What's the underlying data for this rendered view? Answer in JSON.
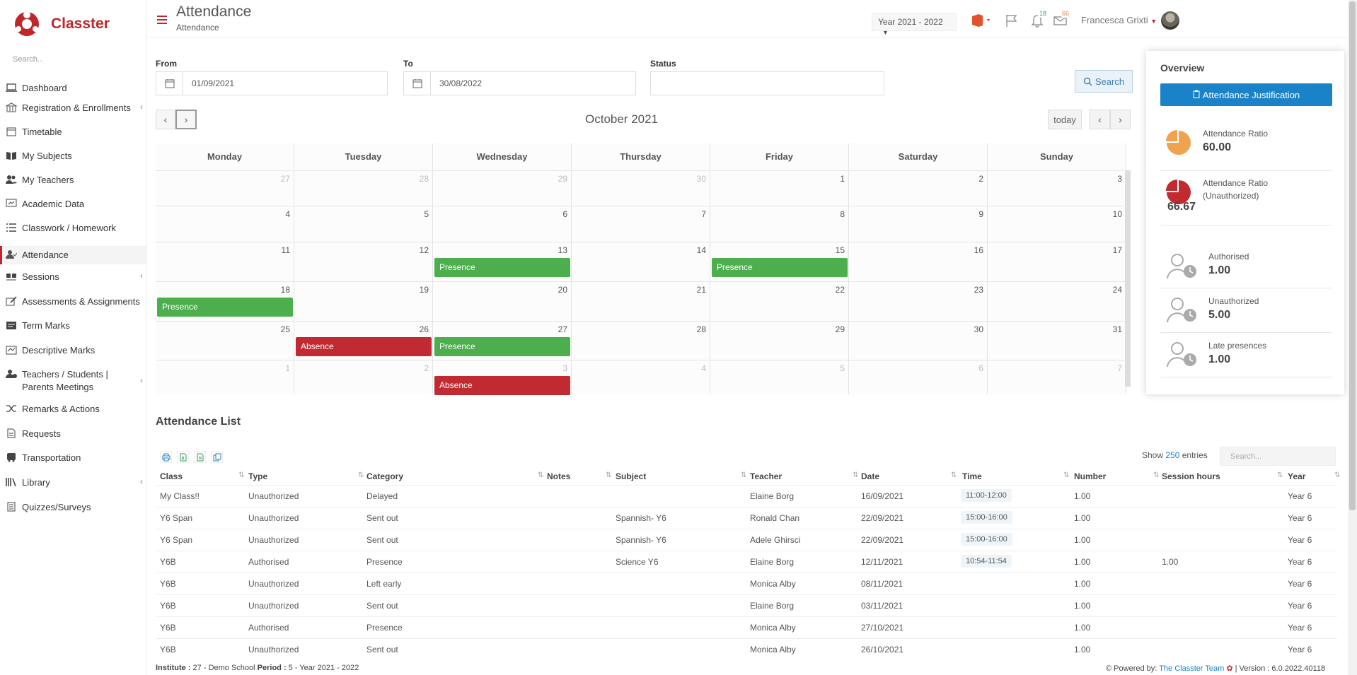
{
  "app": {
    "name": "Classter",
    "search_placeholder": "Search..."
  },
  "sidebar": {
    "items": [
      {
        "label": "Dashboard",
        "icon": "laptop-icon"
      },
      {
        "label": "Registration & Enrollments",
        "icon": "bank-icon",
        "chevron": "‹"
      },
      {
        "label": "Timetable",
        "icon": "calendar-icon"
      },
      {
        "label": "My Subjects",
        "icon": "book-icon"
      },
      {
        "label": "My Teachers",
        "icon": "users-icon"
      },
      {
        "label": "Academic Data",
        "icon": "presentation-icon"
      },
      {
        "label": "Classwork / Homework",
        "icon": "list-icon"
      },
      {
        "label": "Attendance",
        "icon": "user-check-icon",
        "active": true
      },
      {
        "label": "Sessions",
        "icon": "sessions-icon",
        "chevron": "‹"
      },
      {
        "label": "Assessments & Assignments",
        "icon": "edit-icon"
      },
      {
        "label": "Term Marks",
        "icon": "marks-icon"
      },
      {
        "label": "Descriptive Marks",
        "icon": "descriptive-icon"
      },
      {
        "label": "Teachers / Students | Parents Meetings",
        "icon": "meeting-icon",
        "chevron": "‹"
      },
      {
        "label": "Remarks & Actions",
        "icon": "shuffle-icon"
      },
      {
        "label": "Requests",
        "icon": "file-icon"
      },
      {
        "label": "Transportation",
        "icon": "bus-icon"
      },
      {
        "label": "Library",
        "icon": "library-icon",
        "chevron": "‹"
      },
      {
        "label": "Quizzes/Surveys",
        "icon": "quiz-icon"
      }
    ]
  },
  "header": {
    "title": "Attendance",
    "subtitle": "Attendance",
    "year": "Year 2021 - 2022",
    "notifications_count": "18",
    "messages_count": "66",
    "user_name": "Francesca Grixti"
  },
  "filters": {
    "from_label": "From",
    "from_value": "01/09/2021",
    "to_label": "To",
    "to_value": "30/08/2022",
    "status_label": "Status",
    "status_value": "",
    "search_label": "Search"
  },
  "calendar": {
    "title": "October 2021",
    "today_label": "today",
    "days": [
      "Monday",
      "Tuesday",
      "Wednesday",
      "Thursday",
      "Friday",
      "Saturday",
      "Sunday"
    ],
    "weeks": [
      [
        {
          "d": "27",
          "o": true
        },
        {
          "d": "28",
          "o": true
        },
        {
          "d": "29",
          "o": true
        },
        {
          "d": "30",
          "o": true
        },
        {
          "d": "1"
        },
        {
          "d": "2"
        },
        {
          "d": "3"
        }
      ],
      [
        {
          "d": "4"
        },
        {
          "d": "5"
        },
        {
          "d": "6"
        },
        {
          "d": "7"
        },
        {
          "d": "8"
        },
        {
          "d": "9"
        },
        {
          "d": "10"
        }
      ],
      [
        {
          "d": "11"
        },
        {
          "d": "12"
        },
        {
          "d": "13"
        },
        {
          "d": "14"
        },
        {
          "d": "15"
        },
        {
          "d": "16"
        },
        {
          "d": "17"
        }
      ],
      [
        {
          "d": "18"
        },
        {
          "d": "19"
        },
        {
          "d": "20"
        },
        {
          "d": "21"
        },
        {
          "d": "22"
        },
        {
          "d": "23"
        },
        {
          "d": "24"
        }
      ],
      [
        {
          "d": "25"
        },
        {
          "d": "26"
        },
        {
          "d": "27"
        },
        {
          "d": "28"
        },
        {
          "d": "29"
        },
        {
          "d": "30"
        },
        {
          "d": "31"
        }
      ],
      [
        {
          "d": "1",
          "o": true
        },
        {
          "d": "2",
          "o": true
        },
        {
          "d": "3",
          "o": true
        },
        {
          "d": "4",
          "o": true
        },
        {
          "d": "5",
          "o": true
        },
        {
          "d": "6",
          "o": true
        },
        {
          "d": "7",
          "o": true
        }
      ]
    ],
    "events": [
      {
        "week": 2,
        "day": 2,
        "label": "Presence",
        "kind": "presence"
      },
      {
        "week": 2,
        "day": 4,
        "label": "Presence",
        "kind": "presence"
      },
      {
        "week": 3,
        "day": 0,
        "label": "Presence",
        "kind": "presence"
      },
      {
        "week": 4,
        "day": 1,
        "label": "Absence",
        "kind": "absence"
      },
      {
        "week": 4,
        "day": 2,
        "label": "Presence",
        "kind": "presence"
      },
      {
        "week": 5,
        "day": 2,
        "label": "Absence",
        "kind": "absence"
      }
    ]
  },
  "overview": {
    "title": "Overview",
    "button_label": "Attendance Justification",
    "items": [
      {
        "label": "Attendance Ratio",
        "value": "60.00",
        "icon": "pie-chart-orange-icon"
      },
      {
        "label": "Attendance Ratio (Unauthorized)",
        "value": "66.67",
        "icon": "pie-chart-red-icon"
      },
      {
        "label": "Authorised",
        "value": "1.00",
        "icon": "user-clock-icon"
      },
      {
        "label": "Unauthorized",
        "value": "5.00",
        "icon": "user-clock-icon"
      },
      {
        "label": "Late presences",
        "value": "1.00",
        "icon": "user-clock-icon"
      }
    ],
    "colors": {
      "orange": "#f0a24f",
      "red": "#c12a31",
      "blue": "#1a82c8"
    }
  },
  "list": {
    "title": "Attendance List",
    "show_label": "Show",
    "entries_count": "250",
    "entries_label": "entries",
    "search_placeholder": "Search...",
    "columns": [
      "Class",
      "Type",
      "Category",
      "Notes",
      "Subject",
      "Teacher",
      "Date",
      "Time",
      "Number",
      "Session hours",
      "Year"
    ],
    "rows": [
      [
        "My Class!!",
        "Unauthorized",
        "Delayed",
        "",
        "",
        "Elaine Borg",
        "16/09/2021",
        "11:00-12:00",
        "1.00",
        "",
        "Year 6"
      ],
      [
        "Y6 Span",
        "Unauthorized",
        "Sent out",
        "",
        "Spannish- Y6",
        "Ronald Chan",
        "22/09/2021",
        "15:00-16:00",
        "1.00",
        "",
        "Year 6"
      ],
      [
        "Y6 Span",
        "Unauthorized",
        "Sent out",
        "",
        "Spannish- Y6",
        "Adele Ghirsci",
        "22/09/2021",
        "15:00-16:00",
        "1.00",
        "",
        "Year 6"
      ],
      [
        "Y6B",
        "Authorised",
        "Presence",
        "",
        "Science Y6",
        "Elaine Borg",
        "12/11/2021",
        "10:54-11:54",
        "1.00",
        "1.00",
        "Year 6"
      ],
      [
        "Y6B",
        "Unauthorized",
        "Left early",
        "",
        "",
        "Monica Alby",
        "08/11/2021",
        "",
        "1.00",
        "",
        "Year 6"
      ],
      [
        "Y6B",
        "Unauthorized",
        "Sent out",
        "",
        "",
        "Elaine Borg",
        "03/11/2021",
        "",
        "1.00",
        "",
        "Year 6"
      ],
      [
        "Y6B",
        "Authorised",
        "Presence",
        "",
        "",
        "Monica Alby",
        "27/10/2021",
        "",
        "1.00",
        "",
        "Year 6"
      ],
      [
        "Y6B",
        "Unauthorized",
        "Sent out",
        "",
        "",
        "Monica Alby",
        "26/10/2021",
        "",
        "1.00",
        "",
        "Year 6"
      ]
    ]
  },
  "footer": {
    "institute_label": "Institute :",
    "institute_value": " 27 - Demo School ",
    "period_label": "Period :",
    "period_value": " 5 - Year 2021 - 2022",
    "powered_by": "Powered by: ",
    "team": "The Classter Team",
    "version": " | Version : 6.0.2022.40118"
  }
}
